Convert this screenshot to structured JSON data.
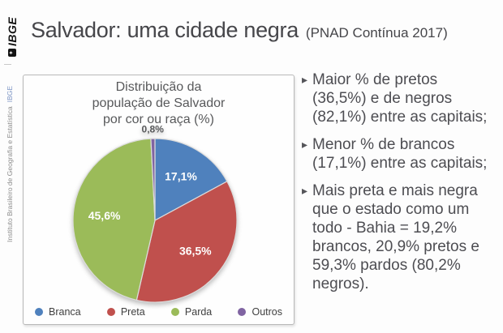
{
  "sidebar": {
    "logo_text": "IBGE",
    "logo_icon_glyph": "✦",
    "institute_name": "Instituto Brasileiro de Geografia e Estatística",
    "institute_suffix": "IBGE",
    "institute_suffix_color": "#7d95c5"
  },
  "header": {
    "title": "Salvador: uma cidade negra",
    "subtitle": "(PNAD Contínua 2017)"
  },
  "chart_data": {
    "type": "pie",
    "title": "Distribuição da população de Salvador por cor ou raça (%)",
    "title_lines": [
      "Distribuição da",
      "população de Salvador",
      "por cor ou raça (%)"
    ],
    "categories": [
      "Branca",
      "Preta",
      "Parda",
      "Outros"
    ],
    "values": [
      17.1,
      36.5,
      45.6,
      0.8
    ],
    "value_labels": [
      "17,1%",
      "36,5%",
      "45,6%",
      "0,8%"
    ],
    "colors": [
      "#4f81bd",
      "#c0504d",
      "#9bbb59",
      "#8064a2"
    ],
    "legend_position": "bottom",
    "start_angle_deg": 0,
    "direction": "clockwise"
  },
  "bullets": [
    {
      "text": "Maior % de pretos (36,5%) e de negros (82,1%) entre as capitais;"
    },
    {
      "text": "Menor % de brancos (17,1%) entre as capitais;"
    },
    {
      "text": "Mais preta e mais negra que o estado como um todo - Bahia = 19,2% brancos, 20,9% pretos e 59,3% pardos (80,2% negros)."
    }
  ]
}
